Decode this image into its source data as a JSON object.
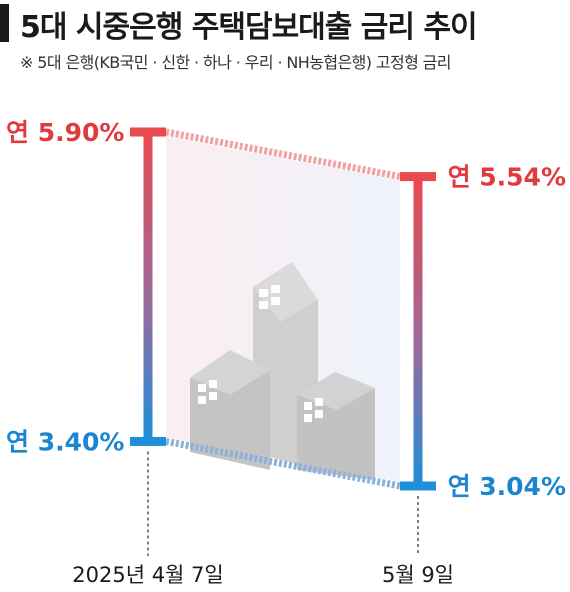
{
  "header": {
    "title": "5대 시중은행 주택담보대출 금리 추이",
    "subtitle": "※ 5대 은행(KB국민 · 신한 · 하나 · 우리 · NH농협은행) 고정형 금리"
  },
  "chart_data": {
    "type": "range-bar",
    "title": "5대 시중은행 주택담보대출 금리 추이",
    "subtitle": "※ 5대 은행(KB국민 · 신한 · 하나 · 우리 · NH농협은행) 고정형 금리",
    "categories": [
      "2025년 4월 7일",
      "5월 9일"
    ],
    "series": [
      {
        "name": "",
        "low": 3.4,
        "high": 5.9,
        "low_label": "연 3.40%",
        "high_label": "연 5.90%"
      },
      {
        "name": "",
        "low": 3.04,
        "high": 5.54,
        "low_label": "연 3.04%",
        "high_label": "연 5.54%"
      }
    ],
    "unit": "%",
    "ylim": [
      3.04,
      5.9
    ],
    "colors": {
      "high": "#e5484d",
      "low": "#1f8ed6",
      "mid": "#8a6aa0",
      "text_high": "#e03a3f",
      "text_low": "#1b86cf"
    }
  }
}
